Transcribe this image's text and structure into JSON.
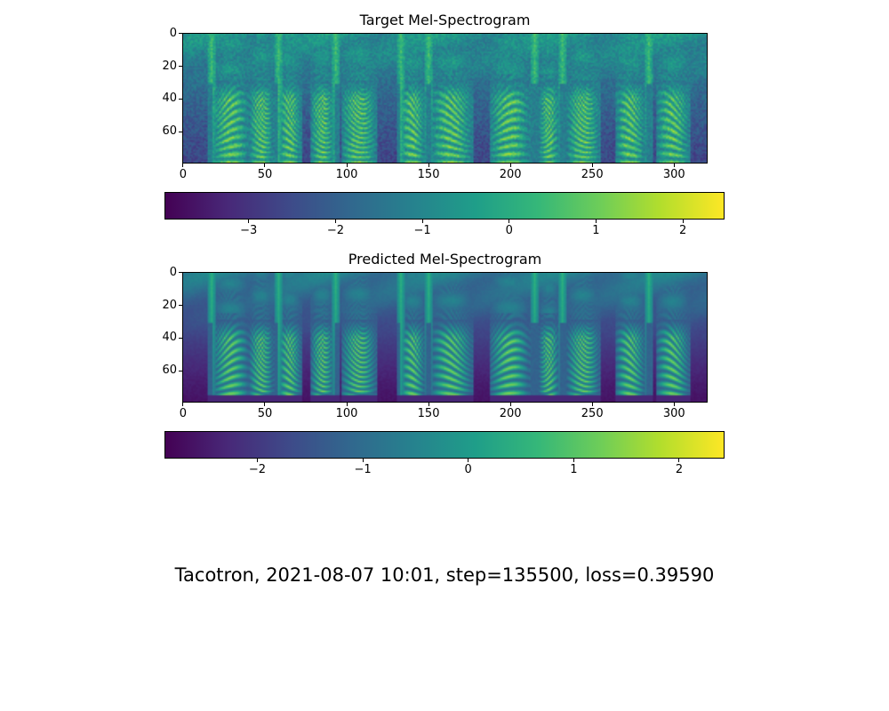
{
  "suptitle": "Tacotron, 2021-08-07 10:01, step=135500, loss=0.39590",
  "chart_data": [
    {
      "type": "heatmap",
      "title": "Target Mel-Spectrogram",
      "colormap": "viridis",
      "x_range": [
        0,
        320
      ],
      "y_range": [
        0,
        79
      ],
      "y_inverted": true,
      "xticks": [
        0,
        50,
        100,
        150,
        200,
        250,
        300
      ],
      "xtick_labels": [
        "0",
        "50",
        "100",
        "150",
        "200",
        "250",
        "300"
      ],
      "yticks": [
        0,
        20,
        40,
        60
      ],
      "ytick_labels": [
        "0",
        "20",
        "40",
        "60"
      ],
      "colorbar": {
        "range": [
          -3.97,
          2.48
        ],
        "ticks": [
          -3,
          -2,
          -1,
          0,
          1,
          2
        ],
        "tick_labels": [
          "−3",
          "−2",
          "−1",
          "0",
          "1",
          "2"
        ],
        "orientation": "horizontal"
      },
      "voiced_segments": [
        [
          18,
          40
        ],
        [
          40,
          55
        ],
        [
          58,
          72
        ],
        [
          78,
          92
        ],
        [
          97,
          118
        ],
        [
          133,
          148
        ],
        [
          152,
          177
        ],
        [
          188,
          212
        ],
        [
          218,
          230
        ],
        [
          235,
          255
        ],
        [
          265,
          283
        ],
        [
          290,
          310
        ]
      ],
      "transient_frames": [
        17,
        58,
        93,
        133,
        150,
        215,
        232,
        285
      ],
      "smooth": false
    },
    {
      "type": "heatmap",
      "title": "Predicted Mel-Spectrogram",
      "colormap": "viridis",
      "x_range": [
        0,
        320
      ],
      "y_range": [
        0,
        79
      ],
      "y_inverted": true,
      "xticks": [
        0,
        50,
        100,
        150,
        200,
        250,
        300
      ],
      "xtick_labels": [
        "0",
        "50",
        "100",
        "150",
        "200",
        "250",
        "300"
      ],
      "yticks": [
        0,
        20,
        40,
        60
      ],
      "ytick_labels": [
        "0",
        "20",
        "40",
        "60"
      ],
      "colorbar": {
        "range": [
          -2.88,
          2.43
        ],
        "ticks": [
          -2,
          -1,
          0,
          1,
          2
        ],
        "tick_labels": [
          "−2",
          "−1",
          "0",
          "1",
          "2"
        ],
        "orientation": "horizontal"
      },
      "voiced_segments": [
        [
          18,
          40
        ],
        [
          40,
          55
        ],
        [
          58,
          72
        ],
        [
          78,
          92
        ],
        [
          97,
          118
        ],
        [
          133,
          148
        ],
        [
          152,
          177
        ],
        [
          188,
          212
        ],
        [
          218,
          230
        ],
        [
          235,
          255
        ],
        [
          265,
          283
        ],
        [
          290,
          310
        ]
      ],
      "transient_frames": [
        17,
        58,
        93,
        133,
        150,
        215,
        232,
        285
      ],
      "smooth": true
    }
  ]
}
